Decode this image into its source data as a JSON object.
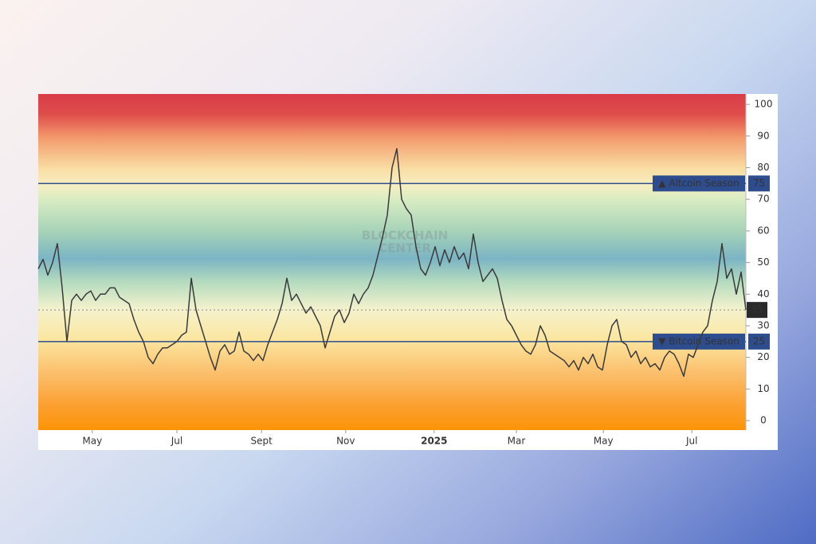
{
  "chart_data": {
    "type": "line",
    "watermark": [
      "BLOCKCHAIN",
      "CENTER"
    ],
    "color": "#3a3a3a",
    "values": [
      48,
      51,
      46,
      50,
      56,
      42,
      25,
      38,
      40,
      38,
      40,
      41,
      38,
      40,
      40,
      42,
      42,
      39,
      38,
      37,
      32,
      28,
      25,
      20,
      18,
      21,
      23,
      23,
      24,
      25,
      27,
      28,
      45,
      35,
      30,
      25,
      20,
      16,
      22,
      24,
      21,
      22,
      28,
      22,
      21,
      19,
      21,
      19,
      24,
      28,
      32,
      37,
      45,
      38,
      40,
      37,
      34,
      36,
      33,
      30,
      23,
      28,
      33,
      35,
      31,
      34,
      40,
      37,
      40,
      42,
      46,
      52,
      58,
      65,
      80,
      86,
      70,
      67,
      65,
      55,
      48,
      46,
      50,
      55,
      49,
      54,
      50,
      55,
      51,
      53,
      48,
      59,
      50,
      44,
      46,
      48,
      45,
      38,
      32,
      30,
      27,
      24,
      22,
      21,
      24,
      30,
      27,
      22,
      21,
      20,
      19,
      17,
      19,
      16,
      20,
      18,
      21,
      17,
      16,
      24,
      30,
      32,
      25,
      24,
      20,
      22,
      18,
      20,
      17,
      18,
      16,
      20,
      22,
      21,
      18,
      14,
      21,
      20,
      24,
      28,
      30,
      38,
      44,
      56,
      45,
      48,
      40,
      47,
      35
    ],
    "reference_lines": [
      {
        "value": 75,
        "label": "▲ Altcoin Season",
        "color": "#2e4d8f"
      },
      {
        "value": 25,
        "label": "▼ Bitcoin Season",
        "color": "#2e4d8f"
      }
    ],
    "xlim": [
      0,
      148
    ],
    "xticks": [
      {
        "value": 11.3,
        "label": "May"
      },
      {
        "value": 29,
        "label": "Jul"
      },
      {
        "value": 46.7,
        "label": "Sept"
      },
      {
        "value": 64.3,
        "label": "Nov"
      },
      {
        "value": 82.8,
        "label": "2025"
      },
      {
        "value": 100,
        "label": "Mar"
      },
      {
        "value": 118.2,
        "label": "May"
      },
      {
        "value": 136.7,
        "label": "Jul"
      }
    ],
    "ylim": [
      -3,
      103.3
    ],
    "yticks": [
      0,
      10,
      20,
      30,
      40,
      50,
      60,
      70,
      80,
      90,
      100
    ]
  }
}
